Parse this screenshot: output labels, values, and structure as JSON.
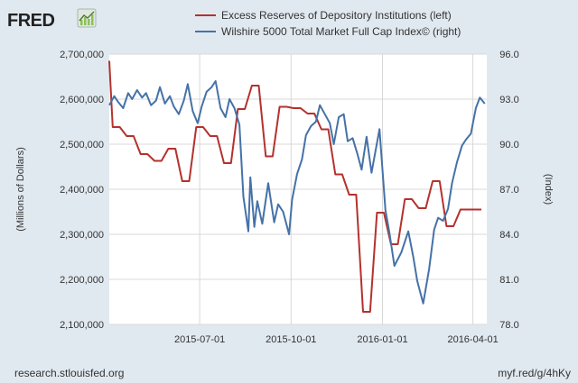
{
  "branding": {
    "logo_text": "FRED",
    "logo_icon": "chart-trend-icon",
    "source": "research.stlouisfed.org",
    "short_link": "myf.red/g/4hKy"
  },
  "colors": {
    "background": "#e1e9f0",
    "plot_background": "#ffffff",
    "gridline": "#d8d8d8",
    "series_left": "#b5312d",
    "series_right": "#4572a7"
  },
  "chart_data": {
    "type": "line",
    "legend_position": "top",
    "grid": true,
    "x_axis": {
      "range": [
        "2015-04-01",
        "2016-04-15"
      ],
      "ticks": [
        "2015-07-01",
        "2015-10-01",
        "2016-01-01",
        "2016-04-01"
      ]
    },
    "y_left": {
      "label": "(Millions of Dollars)",
      "range": [
        2100000,
        2700000
      ],
      "ticks": [
        2100000,
        2200000,
        2300000,
        2400000,
        2500000,
        2600000,
        2700000
      ],
      "tick_labels": [
        "2,100,000",
        "2,200,000",
        "2,300,000",
        "2,400,000",
        "2,500,000",
        "2,600,000",
        "2,700,000"
      ]
    },
    "y_right": {
      "label": "(Index)",
      "range": [
        78,
        96
      ],
      "ticks": [
        78,
        81,
        84,
        87,
        90,
        93,
        96
      ],
      "tick_labels": [
        "78.0",
        "81.0",
        "84.0",
        "87.0",
        "90.0",
        "93.0",
        "96.0"
      ]
    },
    "series": [
      {
        "name": "Excess Reserves of Depository Institutions (left)",
        "axis": "left",
        "color": "#b5312d",
        "x": [
          "2015-04-01",
          "2015-04-08",
          "2015-04-15",
          "2015-04-22",
          "2015-04-29",
          "2015-05-06",
          "2015-05-13",
          "2015-05-20",
          "2015-05-27",
          "2015-06-03",
          "2015-06-10",
          "2015-06-17",
          "2015-06-24",
          "2015-07-01",
          "2015-07-08",
          "2015-07-15",
          "2015-07-22",
          "2015-07-29",
          "2015-08-05",
          "2015-08-12",
          "2015-08-19",
          "2015-08-26",
          "2015-09-02",
          "2015-09-09",
          "2015-09-16",
          "2015-09-23",
          "2015-09-30",
          "2015-10-07",
          "2015-10-14",
          "2015-10-21",
          "2015-10-28",
          "2015-11-04",
          "2015-11-11",
          "2015-11-18",
          "2015-11-25",
          "2015-12-02",
          "2015-12-09",
          "2015-12-16",
          "2015-12-23",
          "2015-12-30",
          "2016-01-06",
          "2016-01-13",
          "2016-01-20",
          "2016-01-27",
          "2016-02-03",
          "2016-02-10",
          "2016-02-17",
          "2016-02-24",
          "2016-03-02",
          "2016-03-09",
          "2016-03-16",
          "2016-03-23",
          "2016-03-30",
          "2016-04-06",
          "2016-04-13"
        ],
        "values": [
          2685000,
          2538000,
          2538000,
          2518000,
          2518000,
          2478000,
          2478000,
          2463000,
          2463000,
          2490000,
          2490000,
          2418000,
          2418000,
          2538000,
          2538000,
          2518000,
          2518000,
          2458000,
          2458000,
          2578000,
          2578000,
          2630000,
          2630000,
          2473000,
          2473000,
          2583000,
          2583000,
          2580000,
          2580000,
          2568000,
          2568000,
          2533000,
          2533000,
          2433000,
          2433000,
          2388000,
          2388000,
          2128000,
          2128000,
          2348000,
          2348000,
          2278000,
          2278000,
          2378000,
          2378000,
          2358000,
          2358000,
          2418000,
          2418000,
          2318000,
          2318000,
          2355000,
          2355000,
          2355000,
          2355000
        ]
      },
      {
        "name": "Wilshire 5000 Total Market Full Cap Index© (right)",
        "axis": "right",
        "color": "#4572a7",
        "x": [
          "2015-04-01",
          "2015-04-06",
          "2015-04-10",
          "2015-04-15",
          "2015-04-20",
          "2015-04-24",
          "2015-04-29",
          "2015-05-04",
          "2015-05-08",
          "2015-05-13",
          "2015-05-18",
          "2015-05-22",
          "2015-05-27",
          "2015-06-01",
          "2015-06-05",
          "2015-06-10",
          "2015-06-15",
          "2015-06-19",
          "2015-06-24",
          "2015-06-29",
          "2015-07-03",
          "2015-07-08",
          "2015-07-13",
          "2015-07-17",
          "2015-07-22",
          "2015-07-27",
          "2015-07-31",
          "2015-08-05",
          "2015-08-10",
          "2015-08-14",
          "2015-08-19",
          "2015-08-21",
          "2015-08-25",
          "2015-08-28",
          "2015-09-02",
          "2015-09-08",
          "2015-09-14",
          "2015-09-18",
          "2015-09-23",
          "2015-09-29",
          "2015-10-02",
          "2015-10-07",
          "2015-10-12",
          "2015-10-16",
          "2015-10-21",
          "2015-10-26",
          "2015-10-30",
          "2015-11-04",
          "2015-11-09",
          "2015-11-13",
          "2015-11-18",
          "2015-11-23",
          "2015-11-27",
          "2015-12-02",
          "2015-12-07",
          "2015-12-11",
          "2015-12-16",
          "2015-12-21",
          "2015-12-29",
          "2016-01-04",
          "2016-01-08",
          "2016-01-13",
          "2016-01-20",
          "2016-01-27",
          "2016-02-01",
          "2016-02-05",
          "2016-02-11",
          "2016-02-17",
          "2016-02-22",
          "2016-02-26",
          "2016-03-02",
          "2016-03-07",
          "2016-03-11",
          "2016-03-16",
          "2016-03-21",
          "2016-03-25",
          "2016-03-30",
          "2016-04-04",
          "2016-04-08",
          "2016-04-13"
        ],
        "values": [
          92.6,
          93.2,
          92.8,
          92.4,
          93.4,
          93.0,
          93.6,
          93.1,
          93.4,
          92.6,
          92.9,
          93.8,
          92.7,
          93.2,
          92.5,
          92.0,
          92.9,
          94.0,
          92.2,
          91.4,
          92.5,
          93.5,
          93.8,
          94.2,
          92.4,
          91.8,
          93.0,
          92.4,
          91.3,
          86.5,
          84.2,
          87.8,
          84.5,
          86.2,
          84.7,
          87.4,
          84.8,
          86.0,
          85.5,
          84.0,
          86.3,
          88.0,
          89.0,
          90.6,
          91.2,
          91.5,
          92.6,
          92.0,
          91.4,
          90.0,
          91.8,
          92.0,
          90.2,
          90.4,
          89.3,
          88.3,
          90.5,
          88.1,
          91.0,
          85.6,
          84.1,
          81.9,
          82.8,
          84.2,
          82.5,
          80.9,
          79.4,
          81.7,
          84.3,
          85.1,
          84.9,
          85.7,
          87.4,
          88.8,
          89.9,
          90.3,
          90.7,
          92.4,
          93.1,
          92.7
        ]
      }
    ]
  }
}
